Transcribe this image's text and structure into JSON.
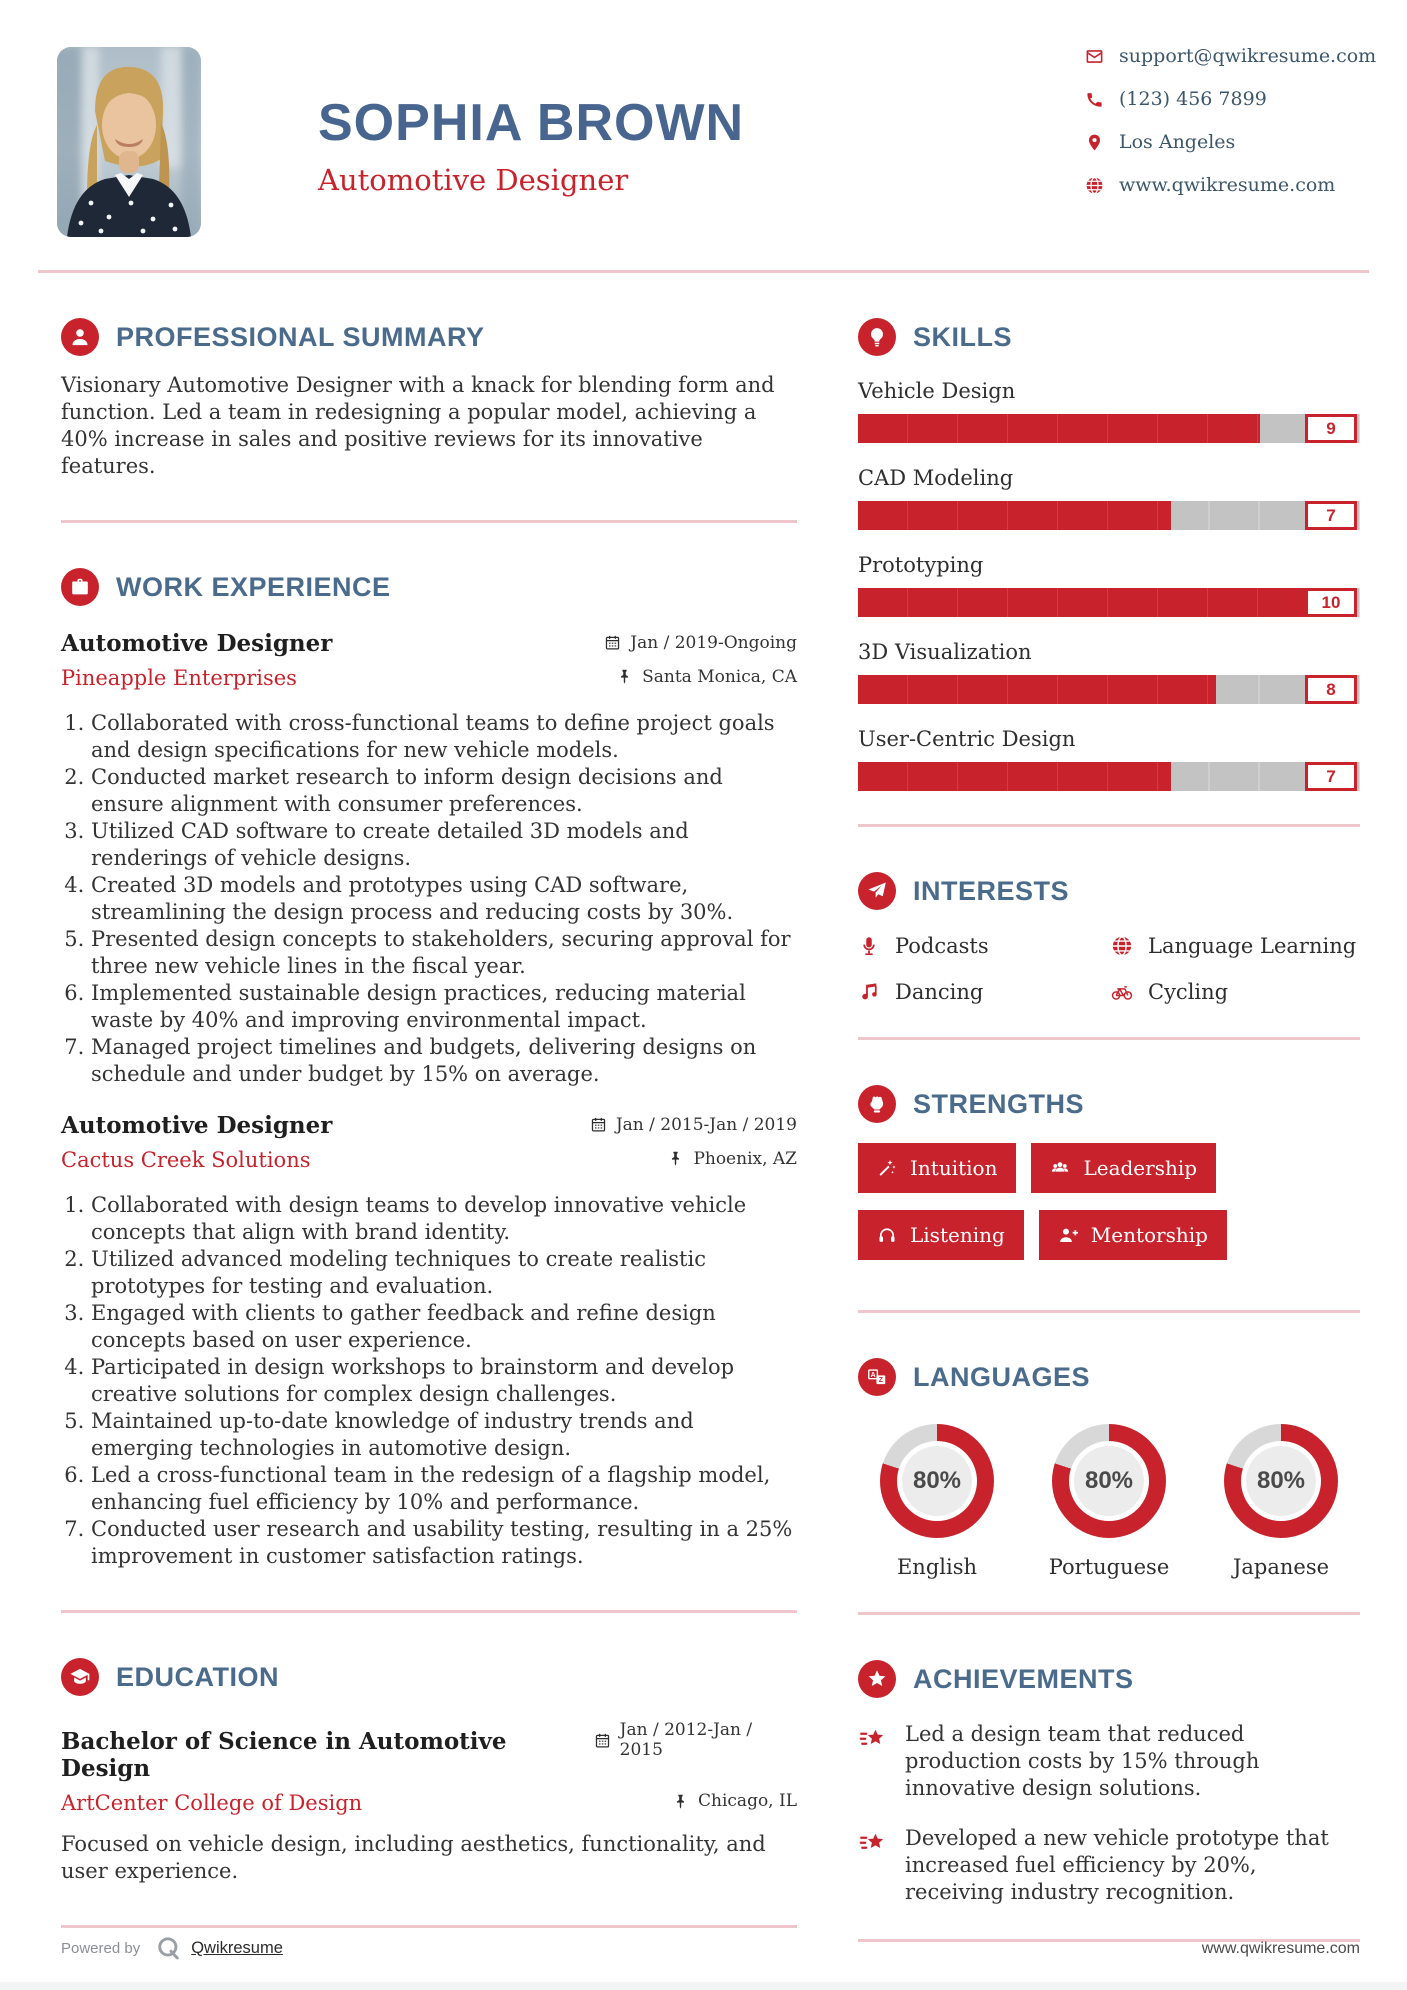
{
  "header": {
    "name": "SOPHIA BROWN",
    "title": "Automotive Designer",
    "photo_alt": "profile-photo",
    "contacts": [
      {
        "icon": "email-icon",
        "text": "support@qwikresume.com"
      },
      {
        "icon": "phone-icon",
        "text": "(123) 456 7899"
      },
      {
        "icon": "location-pin-icon",
        "text": "Los Angeles"
      },
      {
        "icon": "globe-icon",
        "text": "www.qwikresume.com"
      }
    ]
  },
  "summary": {
    "icon": "person-icon",
    "heading": "PROFESSIONAL SUMMARY",
    "text": "Visionary Automotive Designer with a knack for blending form and function. Led a team in redesigning a popular model, achieving a 40% increase in sales and positive reviews for its innovative features."
  },
  "work": {
    "icon": "briefcase-icon",
    "heading": "WORK EXPERIENCE",
    "jobs": [
      {
        "title": "Automotive Designer",
        "company": "Pineapple Enterprises",
        "date": "Jan / 2019-Ongoing",
        "location": "Santa Monica, CA",
        "bullets": [
          "Collaborated with cross-functional teams to define project goals and design specifications for new vehicle models.",
          "Conducted market research to inform design decisions and ensure alignment with consumer preferences.",
          "Utilized CAD software to create detailed 3D models and renderings of vehicle designs.",
          "Created 3D models and prototypes using CAD software, streamlining the design process and reducing costs by 30%.",
          "Presented design concepts to stakeholders, securing approval for three new vehicle lines in the fiscal year.",
          "Implemented sustainable design practices, reducing material waste by 40% and improving environmental impact.",
          "Managed project timelines and budgets, delivering designs on schedule and under budget by 15% on average."
        ]
      },
      {
        "title": "Automotive Designer",
        "company": "Cactus Creek Solutions",
        "date": "Jan / 2015-Jan / 2019",
        "location": "Phoenix, AZ",
        "bullets": [
          "Collaborated with design teams to develop innovative vehicle concepts that align with brand identity.",
          "Utilized advanced modeling techniques to create realistic prototypes for testing and evaluation.",
          "Engaged with clients to gather feedback and refine design concepts based on user experience.",
          "Participated in design workshops to brainstorm and develop creative solutions for complex design challenges.",
          "Maintained up-to-date knowledge of industry trends and emerging technologies in automotive design.",
          "Led a cross-functional team in the redesign of a flagship model, enhancing fuel efficiency by 10% and performance.",
          "Conducted user research and usability testing, resulting in a 25% improvement in customer satisfaction ratings."
        ]
      }
    ]
  },
  "education": {
    "icon": "graduation-cap-icon",
    "heading": "EDUCATION",
    "degree": "Bachelor of Science in Automotive Design",
    "school": "ArtCenter College of Design",
    "date": "Jan / 2012-Jan / 2015",
    "location": "Chicago, IL",
    "description": "Focused on vehicle design, including aesthetics, functionality, and user experience."
  },
  "skills": {
    "icon": "lightbulb-icon",
    "heading": "SKILLS",
    "max": 10,
    "items": [
      {
        "name": "Vehicle Design",
        "value": 9
      },
      {
        "name": "CAD Modeling",
        "value": 7
      },
      {
        "name": "Prototyping",
        "value": 10
      },
      {
        "name": "3D Visualization",
        "value": 8
      },
      {
        "name": "User-Centric Design",
        "value": 7
      }
    ]
  },
  "interests": {
    "icon": "paper-plane-icon",
    "heading": "INTERESTS",
    "items": [
      {
        "icon": "microphone-icon",
        "label": "Podcasts"
      },
      {
        "icon": "globe-icon",
        "label": "Language Learning"
      },
      {
        "icon": "music-note-icon",
        "label": "Dancing"
      },
      {
        "icon": "bicycle-icon",
        "label": "Cycling"
      }
    ]
  },
  "strengths": {
    "icon": "fist-icon",
    "heading": "STRENGTHS",
    "items": [
      {
        "icon": "magic-wand-icon",
        "label": "Intuition"
      },
      {
        "icon": "users-icon",
        "label": "Leadership"
      },
      {
        "icon": "headphones-icon",
        "label": "Listening"
      },
      {
        "icon": "user-plus-icon",
        "label": "Mentorship"
      }
    ]
  },
  "languages": {
    "icon": "translate-icon",
    "heading": "LANGUAGES",
    "items": [
      {
        "label": "English",
        "percent": 80
      },
      {
        "label": "Portuguese",
        "percent": 80
      },
      {
        "label": "Japanese",
        "percent": 80
      }
    ]
  },
  "achievements": {
    "icon": "star-icon",
    "heading": "ACHIEVEMENTS",
    "items": [
      "Led a design team that reduced production costs by 15% through innovative design solutions.",
      "Developed a new vehicle prototype that increased fuel efficiency by 20%, receiving industry recognition."
    ]
  },
  "footer": {
    "powered_by": "Powered by",
    "brand": "Qwikresume",
    "website": "www.qwikresume.com"
  },
  "colors": {
    "accent_red": "#C8232D",
    "heading_blue": "#4A6B8B",
    "name_blue": "#47658E",
    "divider_pink": "#EFC6CC",
    "bar_track_gray": "#C3C3C3"
  }
}
